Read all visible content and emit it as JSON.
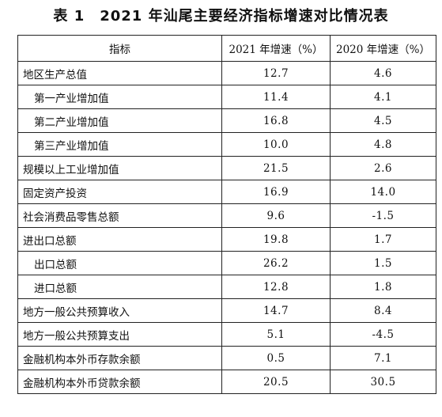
{
  "table": {
    "title": "表 1　2021 年汕尾主要经济指标增速对比情况表",
    "headers": [
      "指标",
      "2021 年增速（%）",
      "2020 年增速（%）"
    ],
    "rows": [
      {
        "label": "地区生产总值",
        "y2021": "12.7",
        "y2020": "4.6",
        "indent": false
      },
      {
        "label": "第一产业增加值",
        "y2021": "11.4",
        "y2020": "4.1",
        "indent": true
      },
      {
        "label": "第二产业增加值",
        "y2021": "16.8",
        "y2020": "4.5",
        "indent": true
      },
      {
        "label": "第三产业增加值",
        "y2021": "10.0",
        "y2020": "4.8",
        "indent": true
      },
      {
        "label": "规模以上工业增加值",
        "y2021": "21.5",
        "y2020": "2.6",
        "indent": false
      },
      {
        "label": "固定资产投资",
        "y2021": "16.9",
        "y2020": "14.0",
        "indent": false
      },
      {
        "label": "社会消费品零售总额",
        "y2021": "9.6",
        "y2020": "-1.5",
        "indent": false
      },
      {
        "label": "进出口总额",
        "y2021": "19.8",
        "y2020": "1.7",
        "indent": false
      },
      {
        "label": "出口总额",
        "y2021": "26.2",
        "y2020": "1.5",
        "indent": true
      },
      {
        "label": "进口总额",
        "y2021": "12.8",
        "y2020": "1.8",
        "indent": true
      },
      {
        "label": "地方一般公共预算收入",
        "y2021": "14.7",
        "y2020": "8.4",
        "indent": false
      },
      {
        "label": "地方一般公共预算支出",
        "y2021": "5.1",
        "y2020": "-4.5",
        "indent": false
      },
      {
        "label": "金融机构本外币存款余额",
        "y2021": "0.5",
        "y2020": "7.1",
        "indent": false
      },
      {
        "label": "金融机构本外币贷款余额",
        "y2021": "20.5",
        "y2020": "30.5",
        "indent": false
      }
    ]
  }
}
